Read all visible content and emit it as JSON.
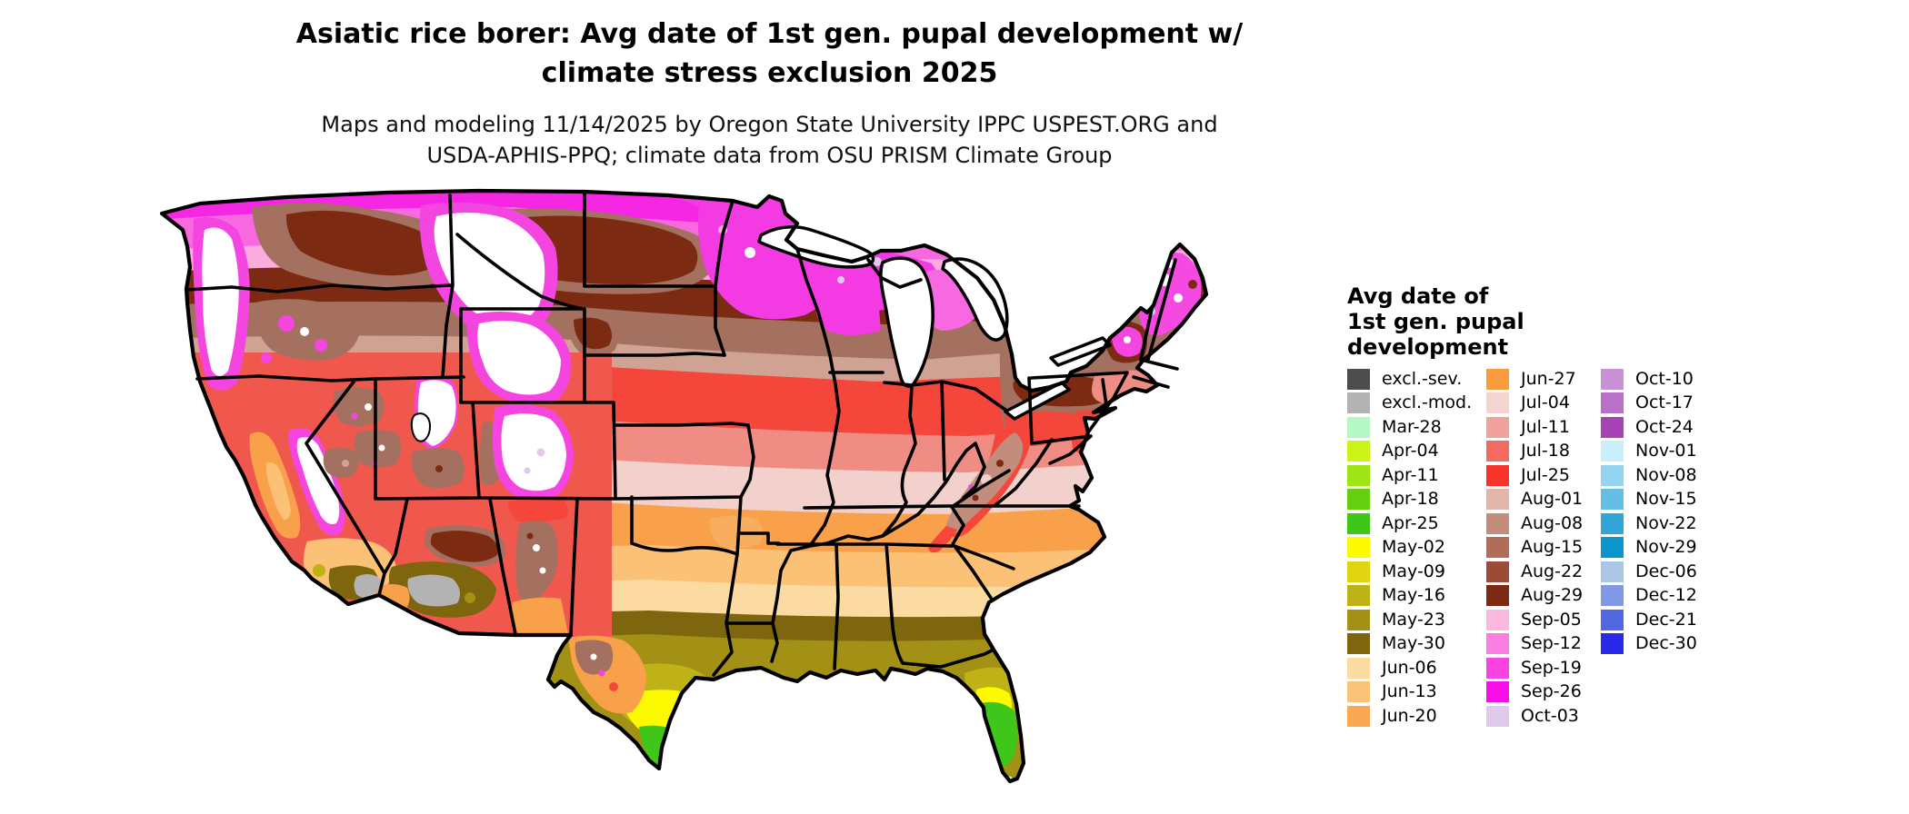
{
  "title": {
    "line1": "Asiatic rice borer: Avg date of 1st gen. pupal development w/",
    "line2": "climate stress exclusion 2025"
  },
  "subtitle": {
    "line1": "Maps and modeling 11/14/2025 by Oregon State University IPPC USPEST.ORG and",
    "line2": "USDA-APHIS-PPQ; climate data from OSU PRISM Climate Group"
  },
  "map": {
    "region": "Contiguous United States",
    "kind": "choropleth raster of avg date of 1st gen. pupal development",
    "border_color": "#000000",
    "excluded_severe_color": "#4d4d4d",
    "excluded_moderate_color": "#b3b3b3",
    "no_data_color": "#ffffff"
  },
  "legend": {
    "title_lines": [
      "Avg date of",
      "1st gen. pupal",
      "development"
    ],
    "columns": [
      {
        "items": [
          {
            "label": "excl.-sev.",
            "color": "#4d4d4d"
          },
          {
            "label": "excl.-mod.",
            "color": "#b3b3b3"
          },
          {
            "label": "Mar-28",
            "color": "#b6f7c6"
          },
          {
            "label": "Apr-04",
            "color": "#c9f416"
          },
          {
            "label": "Apr-11",
            "color": "#9fe414"
          },
          {
            "label": "Apr-18",
            "color": "#66cf10"
          },
          {
            "label": "Apr-25",
            "color": "#3fc61b"
          },
          {
            "label": "May-02",
            "color": "#fdf900"
          },
          {
            "label": "May-09",
            "color": "#dfd611"
          },
          {
            "label": "May-16",
            "color": "#bfb217"
          },
          {
            "label": "May-23",
            "color": "#a29114"
          },
          {
            "label": "May-30",
            "color": "#7d660e"
          },
          {
            "label": "Jun-06",
            "color": "#fcdba2"
          },
          {
            "label": "Jun-13",
            "color": "#fbc279"
          },
          {
            "label": "Jun-20",
            "color": "#faa854"
          }
        ]
      },
      {
        "items": [
          {
            "label": "Jun-27",
            "color": "#f99c3c"
          },
          {
            "label": "Jul-04",
            "color": "#f3d5cf"
          },
          {
            "label": "Jul-11",
            "color": "#f1a29c"
          },
          {
            "label": "Jul-18",
            "color": "#f16b62"
          },
          {
            "label": "Jul-25",
            "color": "#f7342c"
          },
          {
            "label": "Aug-01",
            "color": "#e2b7aa"
          },
          {
            "label": "Aug-08",
            "color": "#c28d7c"
          },
          {
            "label": "Aug-15",
            "color": "#b16d5a"
          },
          {
            "label": "Aug-22",
            "color": "#9d4b37"
          },
          {
            "label": "Aug-29",
            "color": "#7c2a12"
          },
          {
            "label": "Sep-05",
            "color": "#fcb9e0"
          },
          {
            "label": "Sep-12",
            "color": "#fa7ee2"
          },
          {
            "label": "Sep-19",
            "color": "#f845e2"
          },
          {
            "label": "Sep-26",
            "color": "#f80fe8"
          },
          {
            "label": "Oct-03",
            "color": "#dfcaec"
          }
        ]
      },
      {
        "items": [
          {
            "label": "Oct-10",
            "color": "#ca92d6"
          },
          {
            "label": "Oct-17",
            "color": "#b970c8"
          },
          {
            "label": "Oct-24",
            "color": "#a743b6"
          },
          {
            "label": "Nov-01",
            "color": "#c9effa"
          },
          {
            "label": "Nov-08",
            "color": "#93d4ef"
          },
          {
            "label": "Nov-15",
            "color": "#66bee5"
          },
          {
            "label": "Nov-22",
            "color": "#31a5d8"
          },
          {
            "label": "Nov-29",
            "color": "#0b95cc"
          },
          {
            "label": "Dec-06",
            "color": "#abc7e6"
          },
          {
            "label": "Dec-12",
            "color": "#7f99e6"
          },
          {
            "label": "Dec-21",
            "color": "#5168e2"
          },
          {
            "label": "Dec-30",
            "color": "#2929ea"
          }
        ]
      }
    ]
  }
}
